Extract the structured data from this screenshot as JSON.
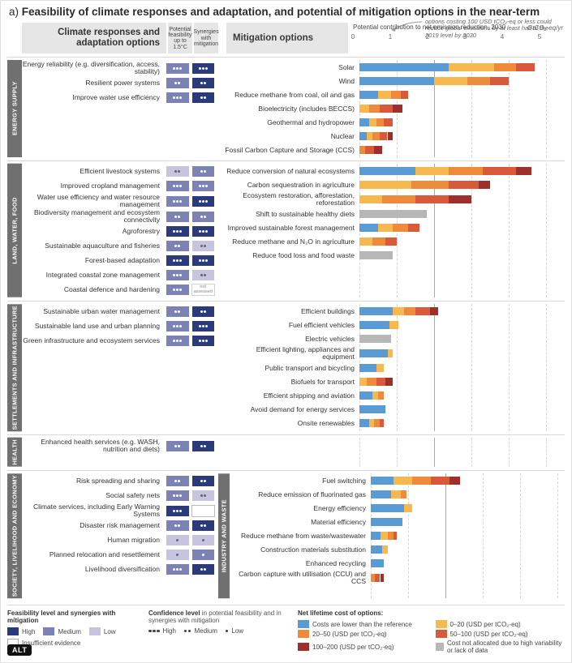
{
  "title_prefix": "a) ",
  "title": "Feasibility of climate responses and adaptation, and potential of mitigation options in the near-term",
  "header": {
    "adapt_title": "Climate responses and adaptation options",
    "feas_col": "Potential feasibility up to 1.5°C",
    "syn_col": "Synergies with mitigation",
    "mit_title": "Mitigation options",
    "axis_title": "Potential contribution to net emission reduction, 2030",
    "axis_unit": "GtCO₂-eq/yr",
    "axis_max": 5,
    "axis_ticks": [
      0,
      1,
      2,
      3,
      4,
      5
    ],
    "ref_line": 2,
    "callout": "options costing 100 USD tCO₂-eq or less could reduce global emissions by at least half of the 2019 level by 2030"
  },
  "colors": {
    "feas_high": "#2a3a7a",
    "feas_med": "#7d82b5",
    "feas_low": "#c6c4de",
    "feas_ie": "#ffffff",
    "cost_ref": "#5a9bd4",
    "cost_0_20": "#f6b84f",
    "cost_20_50": "#ee8a3a",
    "cost_50_100": "#d85a3a",
    "cost_100_200": "#9e2f2a",
    "cost_na": "#b7b7b7",
    "cat_tab": "#707070",
    "grid": "#d5d5d5",
    "grid_ref": "#aaaaaa"
  },
  "sections": [
    {
      "cat_left": "ENERGY SUPPLY",
      "adapt": [
        {
          "label": "Energy reliability (e.g. diversification, access, stability)",
          "feas": "med",
          "feas_c": 3,
          "syn": "high",
          "syn_c": 3
        },
        {
          "label": "Resilient power systems",
          "feas": "med",
          "feas_c": 2,
          "syn": "high",
          "syn_c": 2
        },
        {
          "label": "Improve water use efficiency",
          "feas": "med",
          "feas_c": 3,
          "syn": "high",
          "syn_c": 2
        }
      ],
      "cat_right": null,
      "mit": [
        {
          "label": "Solar",
          "segs": [
            [
              "cost_ref",
              2.4
            ],
            [
              "cost_0_20",
              1.2
            ],
            [
              "cost_20_50",
              0.6
            ],
            [
              "cost_50_100",
              0.5
            ]
          ]
        },
        {
          "label": "Wind",
          "segs": [
            [
              "cost_ref",
              2.0
            ],
            [
              "cost_0_20",
              0.9
            ],
            [
              "cost_20_50",
              0.6
            ],
            [
              "cost_50_100",
              0.5
            ]
          ]
        },
        {
          "label": "Reduce methane from coal, oil and gas",
          "segs": [
            [
              "cost_ref",
              0.5
            ],
            [
              "cost_0_20",
              0.35
            ],
            [
              "cost_20_50",
              0.25
            ],
            [
              "cost_50_100",
              0.2
            ]
          ]
        },
        {
          "label": "Bioelectricity (includes BECCS)",
          "segs": [
            [
              "cost_0_20",
              0.25
            ],
            [
              "cost_20_50",
              0.3
            ],
            [
              "cost_50_100",
              0.35
            ],
            [
              "cost_100_200",
              0.25
            ]
          ]
        },
        {
          "label": "Geothermal and hydropower",
          "segs": [
            [
              "cost_ref",
              0.25
            ],
            [
              "cost_0_20",
              0.2
            ],
            [
              "cost_20_50",
              0.2
            ],
            [
              "cost_50_100",
              0.25
            ]
          ]
        },
        {
          "label": "Nuclear",
          "segs": [
            [
              "cost_ref",
              0.2
            ],
            [
              "cost_0_20",
              0.15
            ],
            [
              "cost_20_50",
              0.2
            ],
            [
              "cost_50_100",
              0.2
            ],
            [
              "cost_100_200",
              0.15
            ]
          ]
        },
        {
          "label": "Fossil Carbon Capture and Storage (CCS)",
          "segs": [
            [
              "cost_20_50",
              0.15
            ],
            [
              "cost_50_100",
              0.25
            ],
            [
              "cost_100_200",
              0.2
            ]
          ]
        }
      ]
    },
    {
      "cat_left": "LAND, WATER, FOOD",
      "adapt": [
        {
          "label": "Efficient livestock systems",
          "feas": "low",
          "feas_c": 2,
          "syn": "med",
          "syn_c": 2
        },
        {
          "label": "Improved cropland management",
          "feas": "med",
          "feas_c": 3,
          "syn": "med",
          "syn_c": 3
        },
        {
          "label": "Water use efficiency and water resource management",
          "feas": "med",
          "feas_c": 3,
          "syn": "high",
          "syn_c": 3
        },
        {
          "label": "Biodiversity management and ecosystem connectivity",
          "feas": "med",
          "feas_c": 2,
          "syn": "med",
          "syn_c": 2
        },
        {
          "label": "Agroforestry",
          "feas": "high",
          "feas_c": 3,
          "syn": "high",
          "syn_c": 3
        },
        {
          "label": "Sustainable aquaculture and fisheries",
          "feas": "med",
          "feas_c": 2,
          "syn": "low",
          "syn_c": 2
        },
        {
          "label": "Forest-based adaptation",
          "feas": "high",
          "feas_c": 3,
          "syn": "high",
          "syn_c": 3
        },
        {
          "label": "Integrated coastal zone management",
          "feas": "med",
          "feas_c": 3,
          "syn": "low",
          "syn_c": 2
        },
        {
          "label": "Coastal defence and hardening",
          "feas": "med",
          "feas_c": 3,
          "syn": "na",
          "syn_c": 0
        }
      ],
      "cat_right": null,
      "mit": [
        {
          "label": "Reduce conversion of natural ecosystems",
          "segs": [
            [
              "cost_ref",
              1.5
            ],
            [
              "cost_0_20",
              0.9
            ],
            [
              "cost_20_50",
              0.9
            ],
            [
              "cost_50_100",
              0.9
            ],
            [
              "cost_100_200",
              0.4
            ]
          ]
        },
        {
          "label": "Carbon sequestration in agriculture",
          "segs": [
            [
              "cost_0_20",
              1.4
            ],
            [
              "cost_20_50",
              1.0
            ],
            [
              "cost_50_100",
              0.8
            ],
            [
              "cost_100_200",
              0.3
            ]
          ]
        },
        {
          "label": "Ecosystem restoration, afforestation, reforestation",
          "segs": [
            [
              "cost_0_20",
              0.6
            ],
            [
              "cost_20_50",
              0.9
            ],
            [
              "cost_50_100",
              0.9
            ],
            [
              "cost_100_200",
              0.6
            ]
          ]
        },
        {
          "label": "Shift to sustainable healthy diets",
          "segs": [
            [
              "cost_na",
              1.8
            ]
          ]
        },
        {
          "label": "Improved sustainable forest management",
          "segs": [
            [
              "cost_ref",
              0.5
            ],
            [
              "cost_0_20",
              0.4
            ],
            [
              "cost_20_50",
              0.4
            ],
            [
              "cost_50_100",
              0.3
            ]
          ]
        },
        {
          "label": "Reduce methane and N₂O in agriculture",
          "segs": [
            [
              "cost_0_20",
              0.35
            ],
            [
              "cost_20_50",
              0.35
            ],
            [
              "cost_50_100",
              0.3
            ]
          ]
        },
        {
          "label": "Reduce food loss and food waste",
          "segs": [
            [
              "cost_na",
              0.9
            ]
          ]
        }
      ]
    },
    {
      "cat_left": "SETTLEMENTS AND INFRASTRUCTURE",
      "adapt": [
        {
          "label": "Sustainable urban water management",
          "feas": "med",
          "feas_c": 2,
          "syn": "high",
          "syn_c": 2
        },
        {
          "label": "Sustainable land use and urban planning",
          "feas": "med",
          "feas_c": 3,
          "syn": "high",
          "syn_c": 3
        },
        {
          "label": "Green infrastructure and ecosystem services",
          "feas": "med",
          "feas_c": 3,
          "syn": "high",
          "syn_c": 3
        }
      ],
      "cat_right": null,
      "mit": [
        {
          "label": "Efficient buildings",
          "segs": [
            [
              "cost_ref",
              0.9
            ],
            [
              "cost_0_20",
              0.3
            ],
            [
              "cost_20_50",
              0.3
            ],
            [
              "cost_50_100",
              0.4
            ],
            [
              "cost_100_200",
              0.2
            ]
          ]
        },
        {
          "label": "Fuel efficient vehicles",
          "segs": [
            [
              "cost_ref",
              0.8
            ],
            [
              "cost_0_20",
              0.25
            ]
          ]
        },
        {
          "label": "Electric vehicles",
          "segs": [
            [
              "cost_na",
              0.85
            ]
          ]
        },
        {
          "label": "Efficient lighting, appliances and equipment",
          "segs": [
            [
              "cost_ref",
              0.75
            ],
            [
              "cost_0_20",
              0.15
            ]
          ]
        },
        {
          "label": "Public transport and bicycling",
          "segs": [
            [
              "cost_ref",
              0.45
            ],
            [
              "cost_0_20",
              0.2
            ]
          ]
        },
        {
          "label": "Biofuels for transport",
          "segs": [
            [
              "cost_0_20",
              0.2
            ],
            [
              "cost_20_50",
              0.25
            ],
            [
              "cost_50_100",
              0.25
            ],
            [
              "cost_100_200",
              0.2
            ]
          ]
        },
        {
          "label": "Efficient shipping and aviation",
          "segs": [
            [
              "cost_ref",
              0.35
            ],
            [
              "cost_0_20",
              0.15
            ],
            [
              "cost_20_50",
              0.15
            ]
          ]
        },
        {
          "label": "Avoid demand for energy services",
          "segs": [
            [
              "cost_ref",
              0.7
            ]
          ]
        },
        {
          "label": "Onsite renewables",
          "segs": [
            [
              "cost_ref",
              0.25
            ],
            [
              "cost_0_20",
              0.15
            ],
            [
              "cost_20_50",
              0.15
            ],
            [
              "cost_50_100",
              0.1
            ]
          ]
        }
      ]
    },
    {
      "cat_left": "HEALTH",
      "adapt": [
        {
          "label": "Enhanced health services (e.g. WASH, nutrition and diets)",
          "feas": "med",
          "feas_c": 2,
          "syn": "high",
          "syn_c": 2
        }
      ],
      "cat_right": null,
      "mit": []
    },
    {
      "cat_left": "SOCIETY, LIVELIHOOD AND ECONOMY",
      "adapt": [
        {
          "label": "Risk spreading and sharing",
          "feas": "med",
          "feas_c": 2,
          "syn": "high",
          "syn_c": 2
        },
        {
          "label": "Social safety nets",
          "feas": "med",
          "feas_c": 3,
          "syn": "low",
          "syn_c": 2
        },
        {
          "label": "Climate services, including Early Warning Systems",
          "feas": "high",
          "feas_c": 3,
          "syn": "ie",
          "syn_c": 0
        },
        {
          "label": "Disaster risk management",
          "feas": "med",
          "feas_c": 2,
          "syn": "high",
          "syn_c": 2
        },
        {
          "label": "Human migration",
          "feas": "low",
          "feas_c": 1,
          "syn": "low",
          "syn_c": 1
        },
        {
          "label": "Planned relocation and resettlement",
          "feas": "low",
          "feas_c": 1,
          "syn": "med",
          "syn_c": 1
        },
        {
          "label": "Livelihood diversification",
          "feas": "med",
          "feas_c": 3,
          "syn": "high",
          "syn_c": 2
        }
      ],
      "cat_right": "INDUSTRY AND WASTE",
      "mit": [
        {
          "label": "Fuel switching",
          "segs": [
            [
              "cost_ref",
              0.6
            ],
            [
              "cost_0_20",
              0.5
            ],
            [
              "cost_20_50",
              0.5
            ],
            [
              "cost_50_100",
              0.5
            ],
            [
              "cost_100_200",
              0.3
            ]
          ]
        },
        {
          "label": "Reduce emission of fluorinated gas",
          "segs": [
            [
              "cost_ref",
              0.55
            ],
            [
              "cost_0_20",
              0.25
            ],
            [
              "cost_20_50",
              0.15
            ]
          ]
        },
        {
          "label": "Energy efficiency",
          "segs": [
            [
              "cost_ref",
              0.9
            ],
            [
              "cost_0_20",
              0.2
            ]
          ]
        },
        {
          "label": "Material efficiency",
          "segs": [
            [
              "cost_ref",
              0.85
            ]
          ]
        },
        {
          "label": "Reduce methane from waste/wastewater",
          "segs": [
            [
              "cost_ref",
              0.25
            ],
            [
              "cost_0_20",
              0.2
            ],
            [
              "cost_20_50",
              0.15
            ],
            [
              "cost_50_100",
              0.1
            ]
          ]
        },
        {
          "label": "Construction materials substitution",
          "segs": [
            [
              "cost_ref",
              0.3
            ],
            [
              "cost_0_20",
              0.15
            ]
          ]
        },
        {
          "label": "Enhanced recycling",
          "segs": [
            [
              "cost_ref",
              0.35
            ]
          ]
        },
        {
          "label": "Carbon capture with utilisation (CCU) and CCS",
          "segs": [
            [
              "cost_20_50",
              0.1
            ],
            [
              "cost_50_100",
              0.15
            ],
            [
              "cost_100_200",
              0.1
            ]
          ]
        }
      ]
    }
  ],
  "legend": {
    "feas_title": "Feasibility level and synergies with mitigation",
    "feas_items": [
      {
        "label": "High",
        "key": "feas_high"
      },
      {
        "label": "Medium",
        "key": "feas_med"
      },
      {
        "label": "Low",
        "key": "feas_low"
      },
      {
        "label": "Insufficient evidence",
        "key": "feas_ie",
        "outline": true
      }
    ],
    "conf_title": "Confidence level",
    "conf_sub": " in potential feasibility and in synergies with mitigation",
    "conf_items": [
      {
        "label": "High",
        "dots": 3
      },
      {
        "label": "Medium",
        "dots": 2
      },
      {
        "label": "Low",
        "dots": 1
      }
    ],
    "cost_title": "Net lifetime cost of options:",
    "cost_items": [
      {
        "label": "Costs are lower than the reference",
        "key": "cost_ref"
      },
      {
        "label": "0–20 (USD per tCO₂-eq)",
        "key": "cost_0_20"
      },
      {
        "label": "20–50 (USD per tCO₂-eq)",
        "key": "cost_20_50"
      },
      {
        "label": "50–100 (USD per tCO₂-eq)",
        "key": "cost_50_100"
      },
      {
        "label": "100–200 (USD per tCO₂-eq)",
        "key": "cost_100_200"
      },
      {
        "label": "Cost not allocated due to high variability or lack of data",
        "key": "cost_na"
      }
    ]
  },
  "na_label": "not assessed",
  "alt_badge": "ALT"
}
